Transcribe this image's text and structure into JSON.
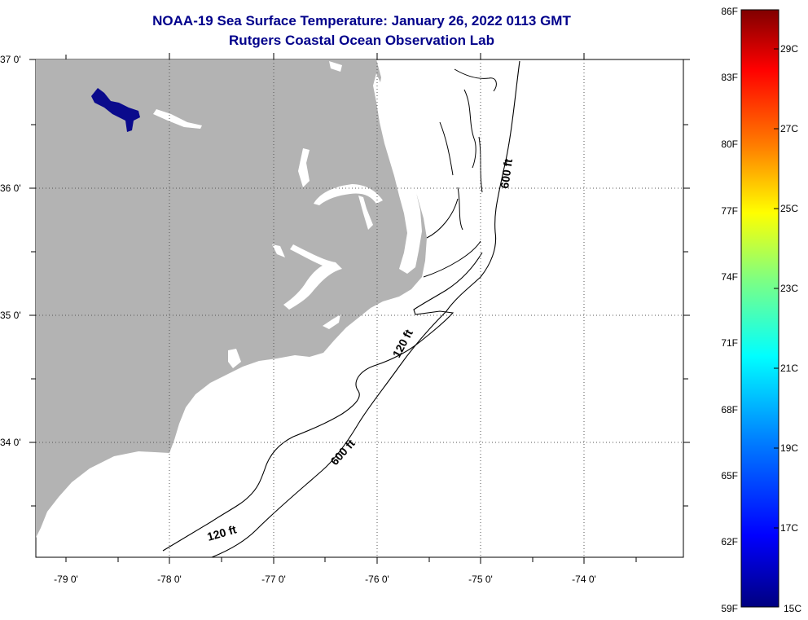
{
  "title": "NOAA-19 Sea Surface Temperature:  January 26, 2022 0113 GMT",
  "subtitle": "Rutgers Coastal Ocean Observation Lab",
  "title_color": "#00008b",
  "land_color": "#b3b3b3",
  "lake_color": "#0a0a8c",
  "map": {
    "lat_labels": [
      "37 0'",
      "36 0'",
      "35 0'",
      "34 0'"
    ],
    "lon_labels": [
      "-79 0'",
      "-78 0'",
      "-77 0'",
      "-76 0'",
      "-75 0'",
      "-74 0'"
    ],
    "contour_labels": [
      "600 ft",
      "120 ft",
      "600 ft",
      "120 ft"
    ]
  },
  "colorbar": {
    "f_labels": [
      "86F",
      "83F",
      "80F",
      "77F",
      "74F",
      "71F",
      "68F",
      "65F",
      "62F",
      "59F"
    ],
    "c_labels": [
      "29C",
      "27C",
      "25C",
      "23C",
      "21C",
      "19C",
      "17C",
      "15C"
    ],
    "f_range": [
      59,
      86
    ],
    "c_range": [
      15,
      30
    ],
    "gradient_stops": [
      "#000080",
      "#0000ff",
      "#0080ff",
      "#00ffff",
      "#80ff80",
      "#ffff00",
      "#ff8000",
      "#ff0000",
      "#800000"
    ]
  }
}
